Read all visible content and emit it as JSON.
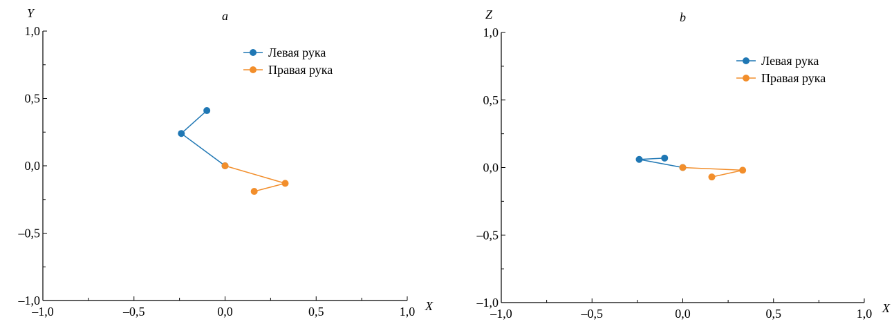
{
  "colors": {
    "left_hand": "#1f77b4",
    "right_hand": "#f28e2b",
    "axis": "#000000"
  },
  "chart_data": [
    {
      "type": "line",
      "title": "a",
      "xlabel": "X",
      "ylabel": "Y",
      "xlim": [
        -1.0,
        1.0
      ],
      "ylim": [
        -1.0,
        1.0
      ],
      "xticks": [
        -1.0,
        -0.5,
        0.0,
        0.5,
        1.0
      ],
      "yticks": [
        -1.0,
        -0.5,
        0.0,
        0.5,
        1.0
      ],
      "xtick_labels": [
        "–1,0",
        "–0,5",
        "0,0",
        "0,5",
        "1,0"
      ],
      "ytick_labels": [
        "–1,0",
        "–0,5",
        "0,0",
        "0,5",
        "1,0"
      ],
      "grid": false,
      "legend_position": "top-right",
      "series": [
        {
          "name": "Левая рука",
          "color": "#1f77b4",
          "x": [
            -0.1,
            -0.24,
            0.0
          ],
          "y": [
            0.41,
            0.24,
            0.0
          ]
        },
        {
          "name": "Правая рука",
          "color": "#f28e2b",
          "x": [
            0.0,
            0.33,
            0.16
          ],
          "y": [
            0.0,
            -0.13,
            -0.19
          ]
        }
      ]
    },
    {
      "type": "line",
      "title": "b",
      "xlabel": "X",
      "ylabel": "Z",
      "xlim": [
        -1.0,
        1.0
      ],
      "ylim": [
        -1.0,
        1.0
      ],
      "xticks": [
        -1.0,
        -0.5,
        0.0,
        0.5,
        1.0
      ],
      "yticks": [
        -1.0,
        -0.5,
        0.0,
        0.5,
        1.0
      ],
      "xtick_labels": [
        "–1,0",
        "–0,5",
        "0,0",
        "0,5",
        "1,0"
      ],
      "ytick_labels": [
        "–1,0",
        "–0,5",
        "0,0",
        "0,5",
        "1,0"
      ],
      "grid": false,
      "legend_position": "top-right",
      "series": [
        {
          "name": "Левая рука",
          "color": "#1f77b4",
          "x": [
            -0.1,
            -0.24,
            0.0
          ],
          "y": [
            0.07,
            0.06,
            0.0
          ]
        },
        {
          "name": "Правая рука",
          "color": "#f28e2b",
          "x": [
            0.0,
            0.33,
            0.16
          ],
          "y": [
            0.0,
            -0.02,
            -0.07
          ]
        }
      ]
    }
  ]
}
